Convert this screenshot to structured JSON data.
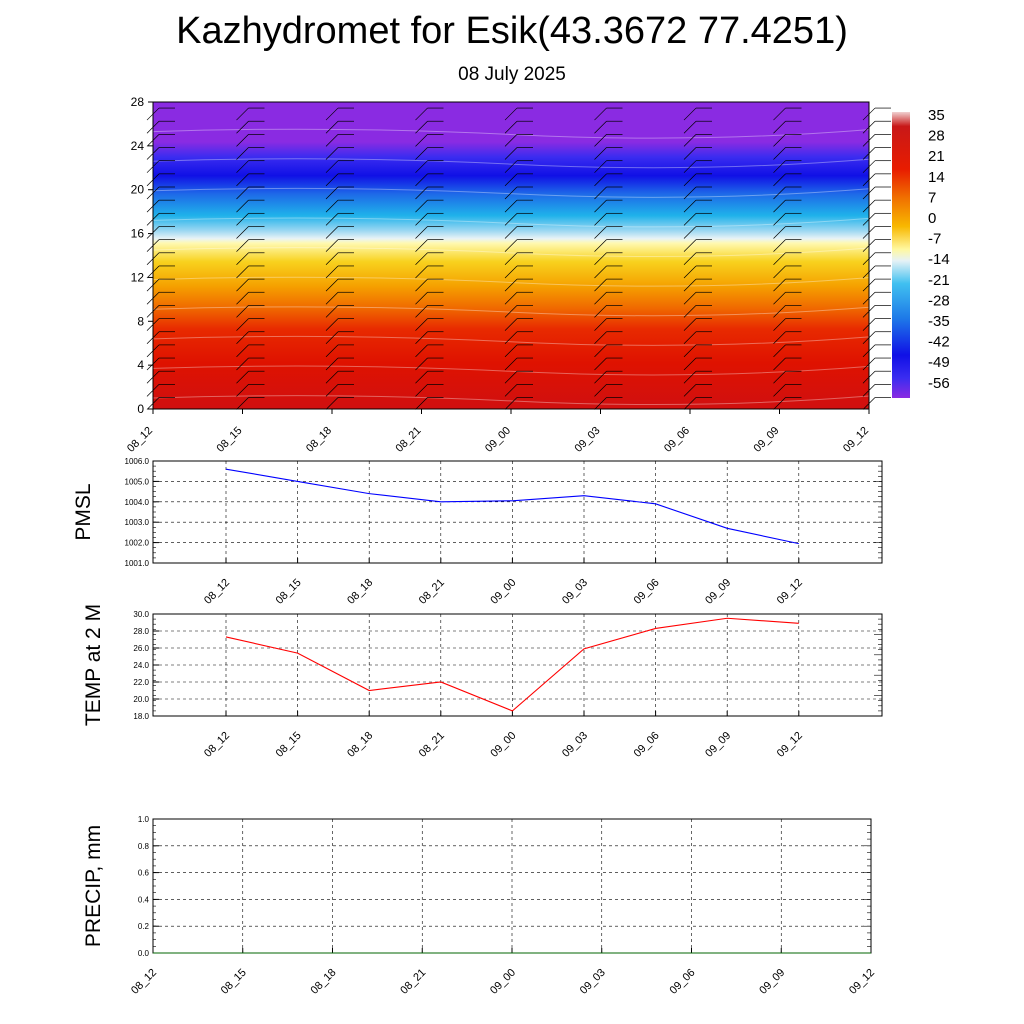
{
  "title": "Kazhydromet for Esik(43.3672 77.4251)",
  "subtitle": "08 July 2025",
  "chart_data": [
    {
      "type": "heatmap",
      "name": "height-time-cross-section",
      "ylim": [
        0,
        28
      ],
      "y_ticks": [
        "0",
        "4",
        "8",
        "12",
        "16",
        "20",
        "24",
        "28"
      ],
      "x_ticks": [
        "08_12",
        "08_15",
        "08_18",
        "08_21",
        "09_00",
        "09_03",
        "09_06",
        "09_09",
        "09_12"
      ],
      "colorbar_labels": [
        "35",
        "28",
        "21",
        "14",
        "7",
        "0",
        "-7",
        "-14",
        "-21",
        "-28",
        "-35",
        "-42",
        "-49",
        "-56"
      ],
      "wind_barbs": true
    },
    {
      "type": "line",
      "ylabel": "PMSL",
      "ylim": [
        1001.0,
        1006.0
      ],
      "y_ticks": [
        "1001.0",
        "1002.0",
        "1003.0",
        "1004.0",
        "1005.0",
        "1006.0"
      ],
      "x": [
        "08_12",
        "08_15",
        "08_18",
        "08_21",
        "09_00",
        "09_03",
        "09_06",
        "09_09",
        "09_12"
      ],
      "values": [
        1005.6,
        1005.0,
        1004.4,
        1004.0,
        1004.05,
        1004.3,
        1003.9,
        1002.7,
        1001.95
      ],
      "color": "#0000ff"
    },
    {
      "type": "line",
      "ylabel": "TEMP at 2 M",
      "ylim": [
        18.0,
        30.0
      ],
      "y_ticks": [
        "18.0",
        "20.0",
        "22.0",
        "24.0",
        "26.0",
        "28.0",
        "30.0"
      ],
      "x": [
        "08_12",
        "08_15",
        "08_18",
        "08_21",
        "09_00",
        "09_03",
        "09_06",
        "09_09",
        "09_12"
      ],
      "values": [
        27.3,
        25.4,
        21.0,
        22.0,
        18.6,
        25.9,
        28.3,
        29.5,
        28.9
      ],
      "color": "#ff0000"
    },
    {
      "type": "line",
      "ylabel": "PRECIP, mm",
      "ylim": [
        0.0,
        1.0
      ],
      "y_ticks": [
        "0.0",
        "0.2",
        "0.4",
        "0.6",
        "0.8",
        "1.0"
      ],
      "x_ticks": [
        "08_12",
        "08_15",
        "08_18",
        "08_21",
        "09_00",
        "09_03",
        "09_06",
        "09_09",
        "09_12"
      ],
      "values": [
        0,
        0,
        0,
        0,
        0,
        0,
        0,
        0,
        0
      ],
      "color": "#006400"
    }
  ]
}
